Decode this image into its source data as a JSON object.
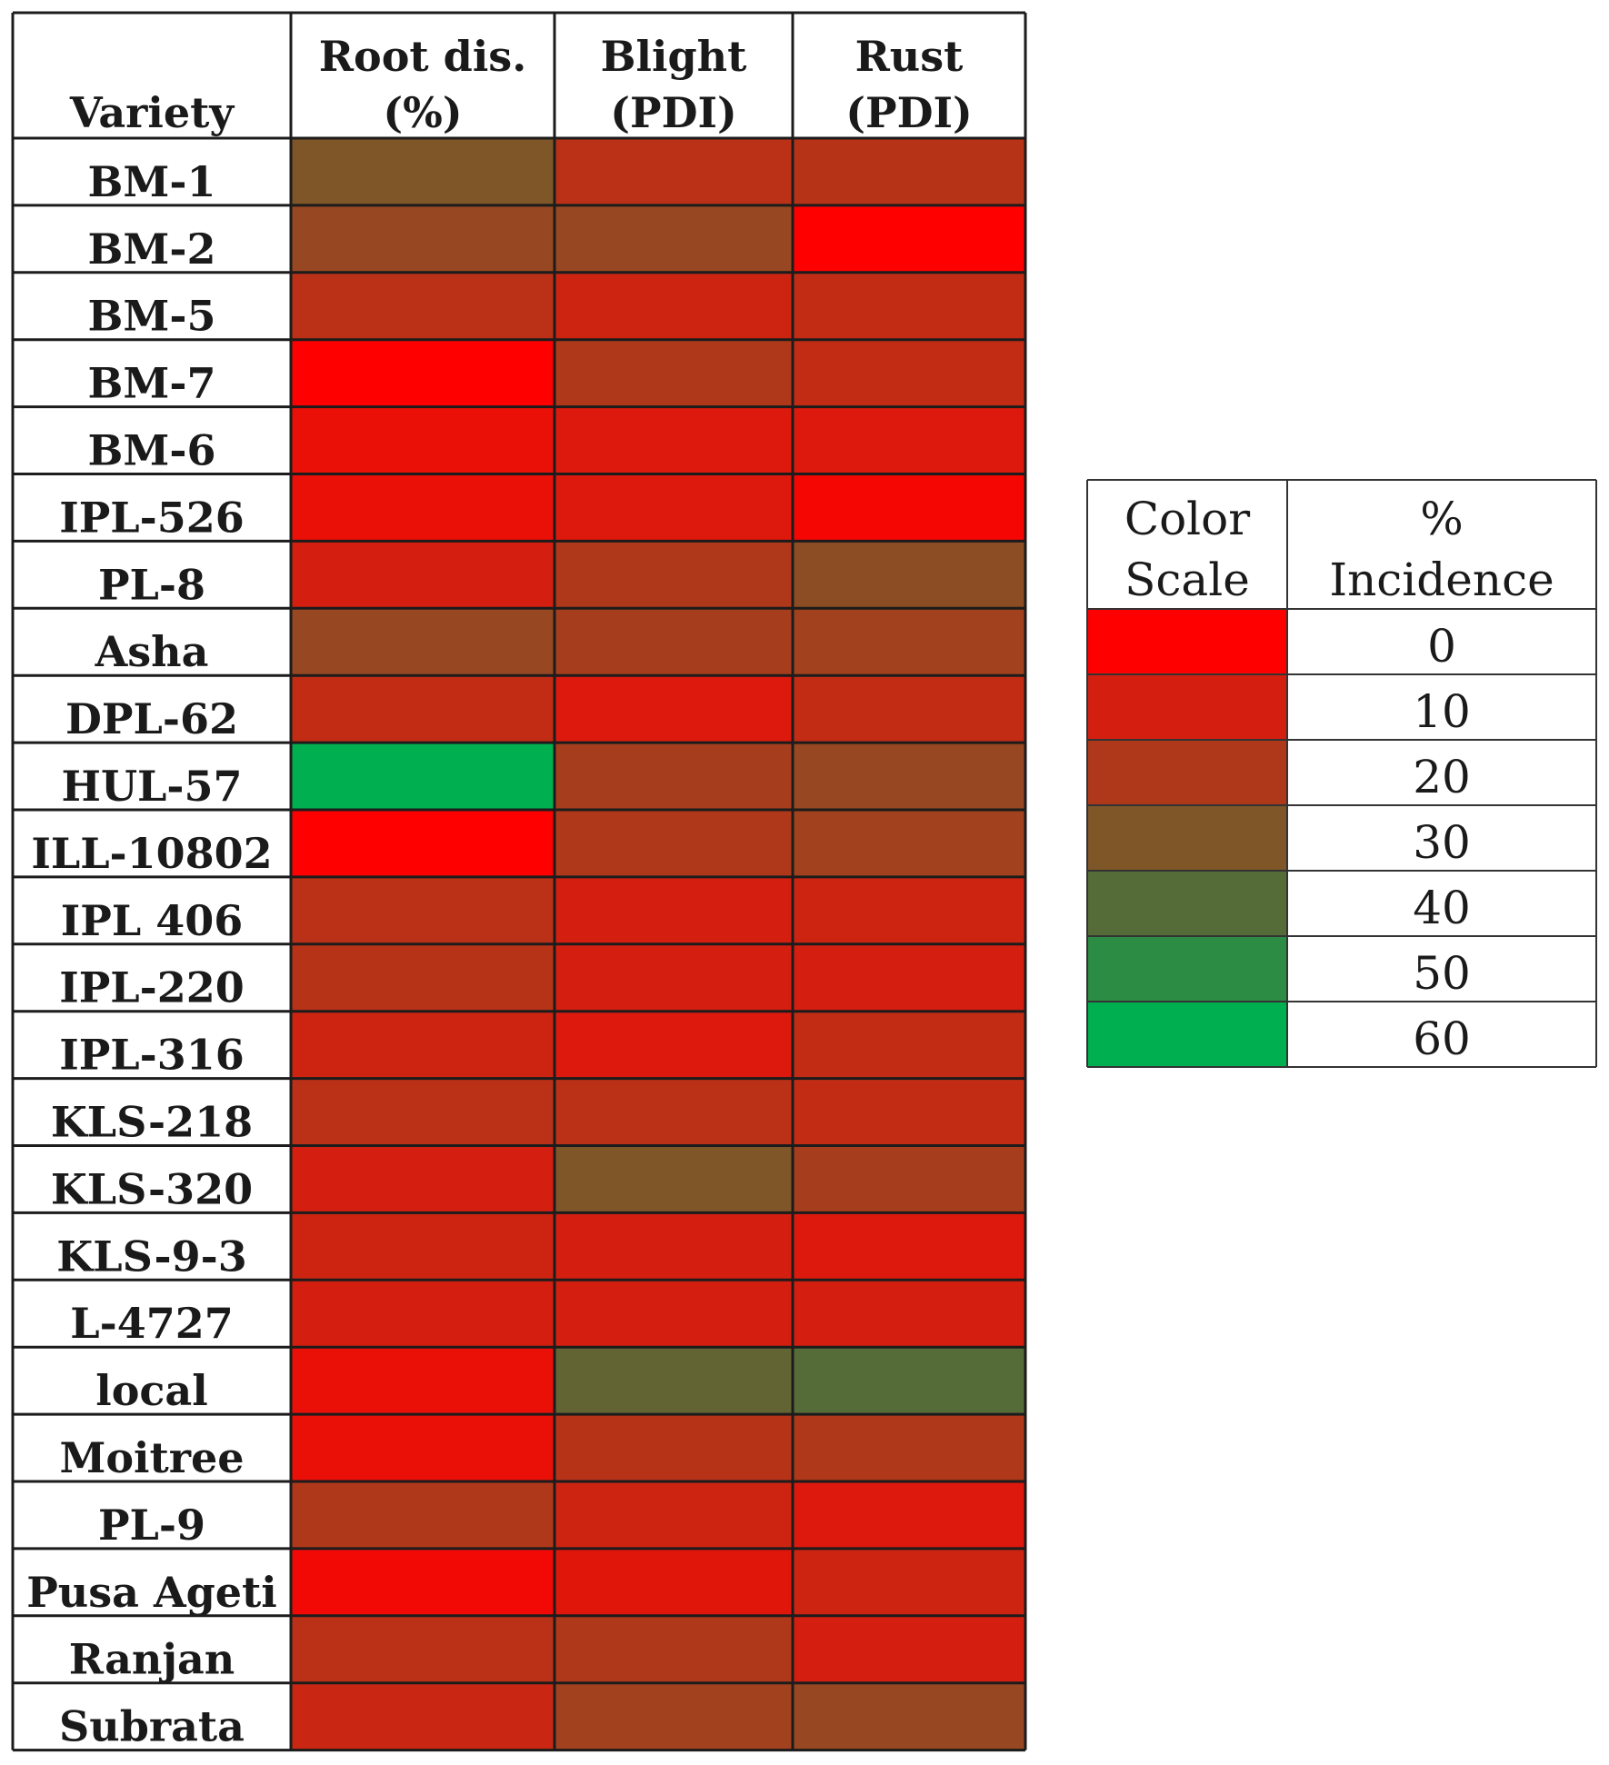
{
  "chart_data": {
    "type": "heatmap",
    "row_header": "Variety",
    "columns": [
      {
        "line1": "Root dis.",
        "line2": "(%)"
      },
      {
        "line1": "Blight",
        "line2": "(PDI)"
      },
      {
        "line1": "Rust",
        "line2": "(PDI)"
      }
    ],
    "rows": [
      {
        "variety": "BM-1",
        "values": [
          30,
          17,
          18
        ]
      },
      {
        "variety": "BM-2",
        "values": [
          25,
          25,
          0
        ]
      },
      {
        "variety": "BM-5",
        "values": [
          17,
          12,
          15
        ]
      },
      {
        "variety": "BM-7",
        "values": [
          0,
          20,
          15
        ]
      },
      {
        "variety": "BM-6",
        "values": [
          5,
          8,
          8
        ]
      },
      {
        "variety": "IPL-526",
        "values": [
          5,
          8,
          2
        ]
      },
      {
        "variety": "PL-8",
        "values": [
          10,
          20,
          27
        ]
      },
      {
        "variety": "Asha",
        "values": [
          25,
          22,
          23
        ]
      },
      {
        "variety": "DPL-62",
        "values": [
          15,
          8,
          15
        ]
      },
      {
        "variety": "HUL-57",
        "values": [
          60,
          22,
          25
        ]
      },
      {
        "variety": "ILL-10802",
        "values": [
          0,
          20,
          23
        ]
      },
      {
        "variety": "IPL 406",
        "values": [
          17,
          10,
          12
        ]
      },
      {
        "variety": "IPL-220",
        "values": [
          18,
          10,
          10
        ]
      },
      {
        "variety": "IPL-316",
        "values": [
          12,
          8,
          15
        ]
      },
      {
        "variety": "KLS-218",
        "values": [
          17,
          17,
          15
        ]
      },
      {
        "variety": "KLS-320",
        "values": [
          10,
          30,
          22
        ]
      },
      {
        "variety": "KLS-9-3",
        "values": [
          12,
          10,
          8
        ]
      },
      {
        "variety": "L-4727",
        "values": [
          10,
          10,
          10
        ]
      },
      {
        "variety": "local",
        "values": [
          5,
          37,
          40
        ]
      },
      {
        "variety": "Moitree",
        "values": [
          5,
          18,
          20
        ]
      },
      {
        "variety": "PL-9",
        "values": [
          20,
          12,
          8
        ]
      },
      {
        "variety": "Pusa Ageti",
        "values": [
          3,
          7,
          12
        ]
      },
      {
        "variety": "Ranjan",
        "values": [
          17,
          20,
          10
        ]
      },
      {
        "variety": "Subrata",
        "values": [
          13,
          23,
          25
        ]
      }
    ],
    "legend": {
      "header_left": {
        "line1": "Color",
        "line2": "Scale"
      },
      "header_right": {
        "line1": "%",
        "line2": "Incidence"
      },
      "stops": [
        {
          "label": "0",
          "value": 0,
          "color": "#ff0000"
        },
        {
          "label": "10",
          "value": 10,
          "color": "#d41f10"
        },
        {
          "label": "20",
          "value": 20,
          "color": "#b0381a"
        },
        {
          "label": "30",
          "value": 30,
          "color": "#7e5628"
        },
        {
          "label": "40",
          "value": 40,
          "color": "#566c38"
        },
        {
          "label": "50",
          "value": 50,
          "color": "#2d8c44"
        },
        {
          "label": "60",
          "value": 60,
          "color": "#00b050"
        }
      ]
    }
  }
}
